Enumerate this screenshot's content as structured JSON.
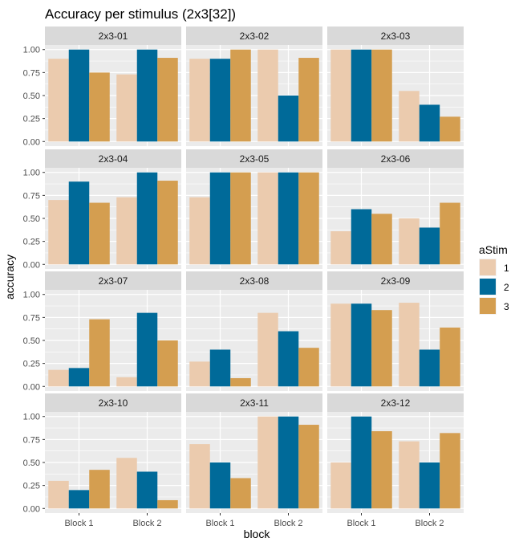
{
  "chart_data": {
    "type": "bar",
    "title": "Accuracy per stimulus (2x3[32])",
    "xlabel": "block",
    "ylabel": "accuracy",
    "categories": [
      "Block 1",
      "Block 2"
    ],
    "ylim": [
      0,
      1
    ],
    "yticks": [
      "0.00",
      "0.25",
      "0.50",
      "0.75",
      "1.00"
    ],
    "grid": true,
    "legend": {
      "title": "aStim",
      "position": "right",
      "entries": [
        {
          "label": "1",
          "color": "#EBCBAE"
        },
        {
          "label": "2",
          "color": "#006A99"
        },
        {
          "label": "3",
          "color": "#D49E50"
        }
      ]
    },
    "panels": [
      {
        "name": "2x3-01",
        "series": [
          {
            "name": "1",
            "values": [
              0.9,
              0.73
            ]
          },
          {
            "name": "2",
            "values": [
              1.0,
              1.0
            ]
          },
          {
            "name": "3",
            "values": [
              0.75,
              0.91
            ]
          }
        ]
      },
      {
        "name": "2x3-02",
        "series": [
          {
            "name": "1",
            "values": [
              0.9,
              1.0
            ]
          },
          {
            "name": "2",
            "values": [
              0.9,
              0.5
            ]
          },
          {
            "name": "3",
            "values": [
              1.0,
              0.91
            ]
          }
        ]
      },
      {
        "name": "2x3-03",
        "series": [
          {
            "name": "1",
            "values": [
              1.0,
              0.55
            ]
          },
          {
            "name": "2",
            "values": [
              1.0,
              0.4
            ]
          },
          {
            "name": "3",
            "values": [
              1.0,
              0.27
            ]
          }
        ]
      },
      {
        "name": "2x3-04",
        "series": [
          {
            "name": "1",
            "values": [
              0.7,
              0.73
            ]
          },
          {
            "name": "2",
            "values": [
              0.9,
              1.0
            ]
          },
          {
            "name": "3",
            "values": [
              0.67,
              0.91
            ]
          }
        ]
      },
      {
        "name": "2x3-05",
        "series": [
          {
            "name": "1",
            "values": [
              0.73,
              1.0
            ]
          },
          {
            "name": "2",
            "values": [
              1.0,
              1.0
            ]
          },
          {
            "name": "3",
            "values": [
              1.0,
              1.0
            ]
          }
        ]
      },
      {
        "name": "2x3-06",
        "series": [
          {
            "name": "1",
            "values": [
              0.36,
              0.5
            ]
          },
          {
            "name": "2",
            "values": [
              0.6,
              0.4
            ]
          },
          {
            "name": "3",
            "values": [
              0.55,
              0.67
            ]
          }
        ]
      },
      {
        "name": "2x3-07",
        "series": [
          {
            "name": "1",
            "values": [
              0.18,
              0.1
            ]
          },
          {
            "name": "2",
            "values": [
              0.2,
              0.8
            ]
          },
          {
            "name": "3",
            "values": [
              0.73,
              0.5
            ]
          }
        ]
      },
      {
        "name": "2x3-08",
        "series": [
          {
            "name": "1",
            "values": [
              0.27,
              0.8
            ]
          },
          {
            "name": "2",
            "values": [
              0.4,
              0.6
            ]
          },
          {
            "name": "3",
            "values": [
              0.09,
              0.42
            ]
          }
        ]
      },
      {
        "name": "2x3-09",
        "series": [
          {
            "name": "1",
            "values": [
              0.9,
              0.91
            ]
          },
          {
            "name": "2",
            "values": [
              0.9,
              0.4
            ]
          },
          {
            "name": "3",
            "values": [
              0.83,
              0.64
            ]
          }
        ]
      },
      {
        "name": "2x3-10",
        "series": [
          {
            "name": "1",
            "values": [
              0.3,
              0.55
            ]
          },
          {
            "name": "2",
            "values": [
              0.2,
              0.4
            ]
          },
          {
            "name": "3",
            "values": [
              0.42,
              0.09
            ]
          }
        ]
      },
      {
        "name": "2x3-11",
        "series": [
          {
            "name": "1",
            "values": [
              0.7,
              1.0
            ]
          },
          {
            "name": "2",
            "values": [
              0.5,
              1.0
            ]
          },
          {
            "name": "3",
            "values": [
              0.33,
              0.91
            ]
          }
        ]
      },
      {
        "name": "2x3-12",
        "series": [
          {
            "name": "1",
            "values": [
              0.5,
              0.73
            ]
          },
          {
            "name": "2",
            "values": [
              1.0,
              0.5
            ]
          },
          {
            "name": "3",
            "values": [
              0.84,
              0.82
            ]
          }
        ]
      }
    ]
  }
}
